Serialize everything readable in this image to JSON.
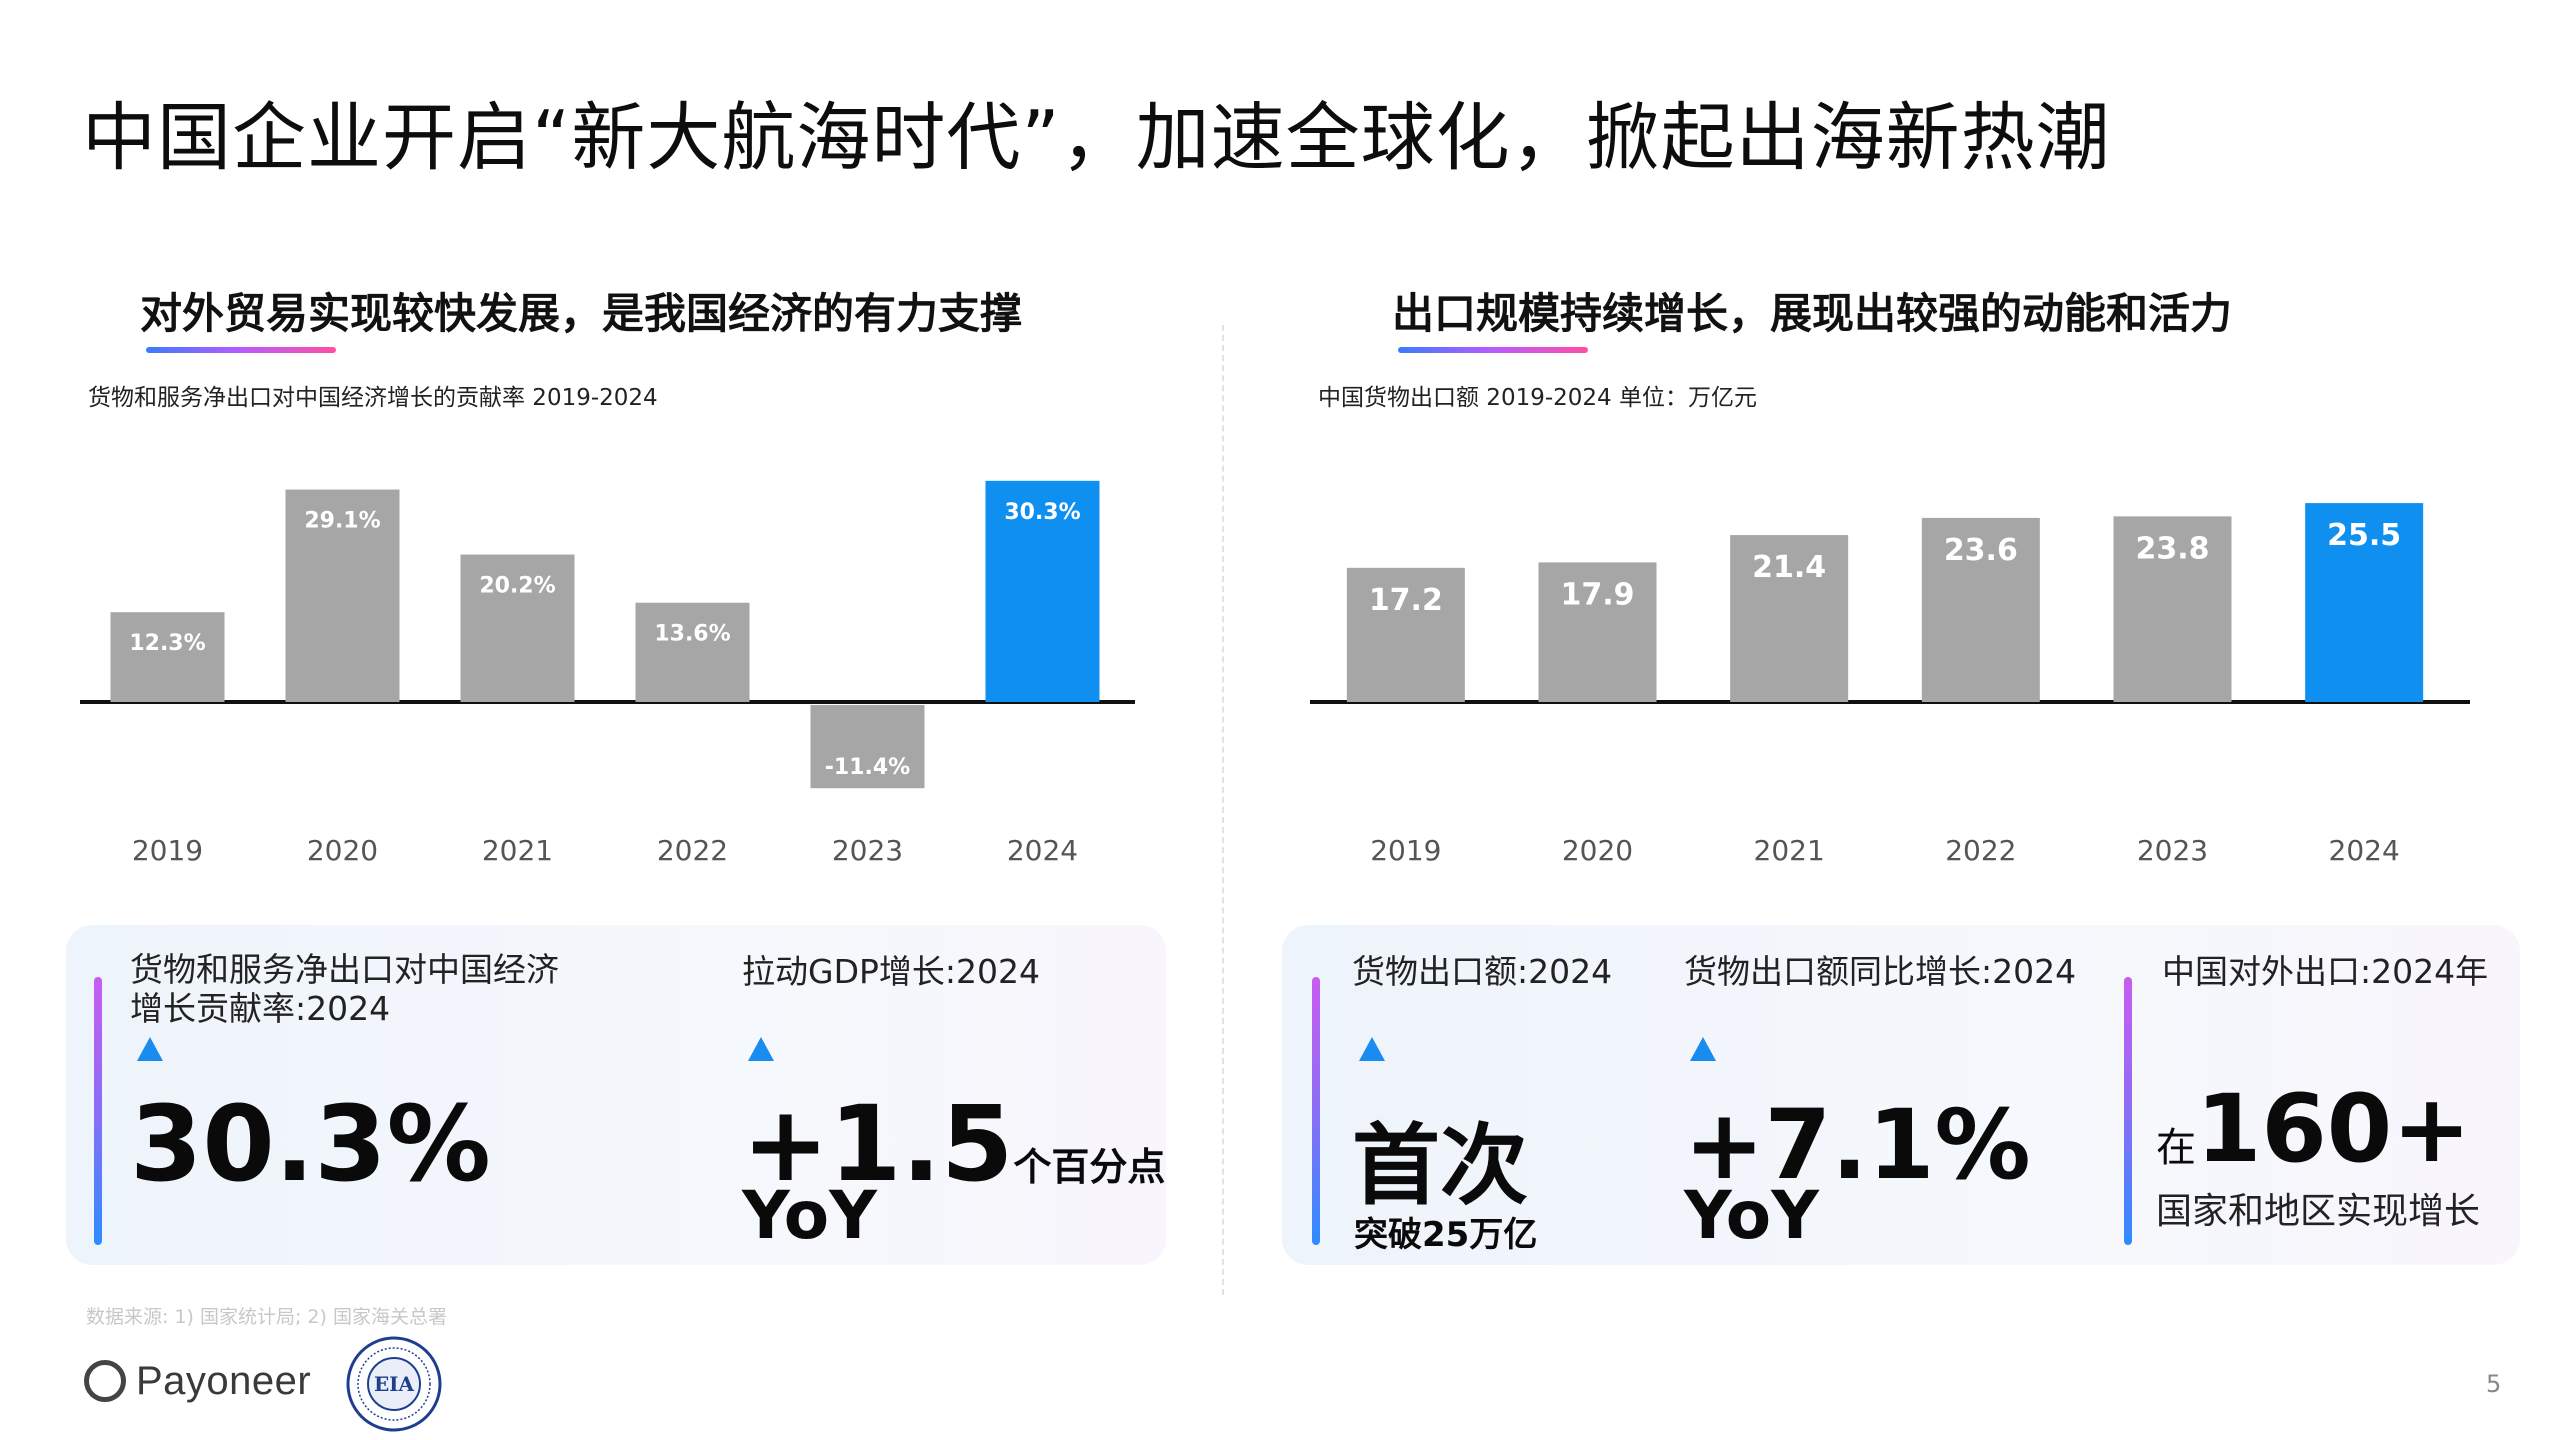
{
  "title": "中国企业开启“新大航海时代”，加速全球化，掀起出海新热潮",
  "left": {
    "heading": "对外贸易实现较快发展，是我国经济的有力支撑",
    "subtitle": "货物和服务净出口对中国经济增长的贡献率 2019-2024",
    "chart_data": {
      "type": "bar",
      "categories": [
        "2019",
        "2020",
        "2021",
        "2022",
        "2023",
        "2024"
      ],
      "values": [
        12.3,
        29.1,
        20.2,
        13.6,
        -11.4,
        30.3
      ],
      "value_labels": [
        "12.3%",
        "29.1%",
        "20.2%",
        "13.6%",
        "-11.4%",
        "30.3%"
      ],
      "title": "货物和服务净出口对中国经济增长的贡献率 2019-2024",
      "ylim": [
        -12,
        31
      ],
      "grid": false,
      "colors": {
        "default": "#a6a6a6",
        "highlight": "#0f8ff0"
      },
      "highlight_index": 5
    }
  },
  "right": {
    "heading": "出口规模持续增长，展现出较强的动能和活力",
    "subtitle": "中国货物出口额 2019-2024  单位：万亿元",
    "chart_data": {
      "type": "bar",
      "categories": [
        "2019",
        "2020",
        "2021",
        "2022",
        "2023",
        "2024"
      ],
      "values": [
        17.2,
        17.9,
        21.4,
        23.6,
        23.8,
        25.5
      ],
      "value_labels": [
        "17.2",
        "17.9",
        "21.4",
        "23.6",
        "23.8",
        "25.5"
      ],
      "title": "中国货物出口额 2019-2024",
      "ylabel": "单位：万亿元",
      "ylim": [
        0,
        25.5
      ],
      "grid": false,
      "colors": {
        "default": "#a6a6a6",
        "highlight": "#0f8ff0"
      },
      "highlight_index": 5
    }
  },
  "kpis": {
    "contribution": {
      "label_line1": "货物和服务净出口对中国经济",
      "label_line2": "增长贡献率:2024",
      "value": "30.3%"
    },
    "gdp": {
      "label": "拉动GDP增长:2024",
      "value": "+1.5",
      "unit": "个百分点",
      "sub": "YoY"
    },
    "export_value": {
      "label": "货物出口额:2024",
      "value": "首次",
      "sub": "突破25万亿"
    },
    "export_growth": {
      "label": "货物出口额同比增长:2024",
      "value": "+7.1%",
      "sub": "YoY"
    },
    "export_countries": {
      "label": "中国对外出口:2024年",
      "prefix": "在",
      "value": "160+",
      "sub": "国家和地区实现增长"
    }
  },
  "source": "数据来源: 1) 国家统计局; 2) 国家海关总署",
  "logos": {
    "payoneer": "Payoneer",
    "eia": "EIA"
  },
  "page_number": "5",
  "accent_colors": {
    "blue": "#0f8ff0",
    "bar_gray": "#a6a6a6",
    "gradient_start": "#3a7bff",
    "gradient_end": "#ff4fa3"
  }
}
